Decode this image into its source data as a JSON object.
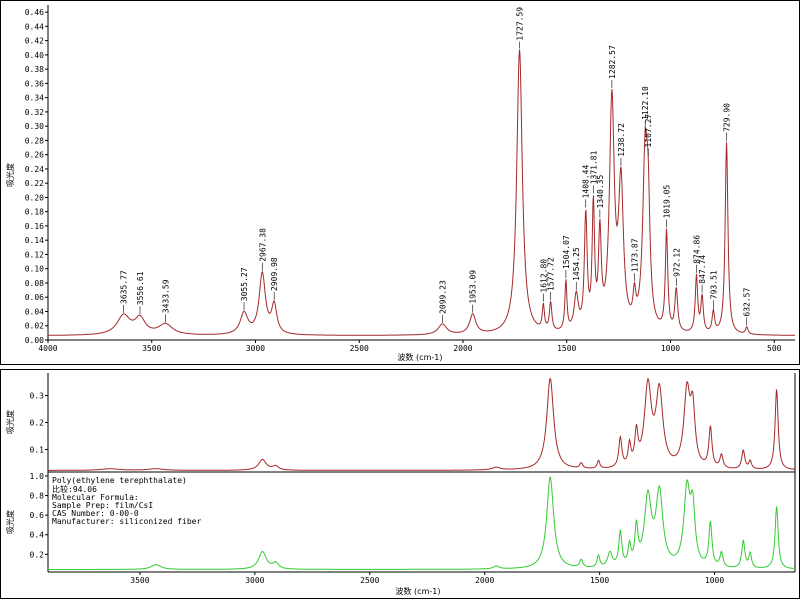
{
  "chart_data": [
    {
      "type": "line",
      "panel": "top",
      "xlim": [
        4000,
        400
      ],
      "ylim": [
        0,
        0.47
      ],
      "x_ticks": [
        "4000",
        "3500",
        "3000",
        "2500",
        "2000",
        "1500",
        "1000",
        "500"
      ],
      "y_ticks": [
        "0.00",
        "0.02",
        "0.04",
        "0.06",
        "0.08",
        "0.10",
        "0.12",
        "0.14",
        "0.16",
        "0.18",
        "0.20",
        "0.22",
        "0.24",
        "0.26",
        "0.28",
        "0.30",
        "0.32",
        "0.34",
        "0.36",
        "0.38",
        "0.40",
        "0.42",
        "0.44",
        "0.46"
      ],
      "xlabel": "波数 (cm-1)",
      "ylabel": "吸光度",
      "series_color": "#a52a2a",
      "baseline": 0.006,
      "peaks": [
        {
          "x": 3635.77,
          "y": 0.027,
          "w": 38,
          "label": "3635.77"
        },
        {
          "x": 3556.61,
          "y": 0.022,
          "w": 30,
          "label": "3556.61"
        },
        {
          "x": 3433.59,
          "y": 0.015,
          "w": 40,
          "label": "3433.59"
        },
        {
          "x": 3055.27,
          "y": 0.03,
          "w": 22,
          "label": "3055.27"
        },
        {
          "x": 2967.38,
          "y": 0.085,
          "w": 18,
          "label": "2967.38"
        },
        {
          "x": 2909.98,
          "y": 0.04,
          "w": 15,
          "label": "2909.98"
        },
        {
          "x": 2099.23,
          "y": 0.015,
          "w": 25,
          "label": "2099.23"
        },
        {
          "x": 1953.09,
          "y": 0.028,
          "w": 18,
          "label": "1953.09"
        },
        {
          "x": 1727.59,
          "y": 0.4,
          "w": 16,
          "label": "1727.59"
        },
        {
          "x": 1612.8,
          "y": 0.035,
          "w": 6,
          "label": "1612.80"
        },
        {
          "x": 1577.72,
          "y": 0.04,
          "w": 7,
          "label": "1577.72"
        },
        {
          "x": 1504.07,
          "y": 0.07,
          "w": 6,
          "label": "1504.07"
        },
        {
          "x": 1454.25,
          "y": 0.05,
          "w": 12,
          "label": "1454.25"
        },
        {
          "x": 1408.44,
          "y": 0.16,
          "w": 8,
          "label": "1408.44"
        },
        {
          "x": 1371.81,
          "y": 0.17,
          "w": 7,
          "label": "1371.81"
        },
        {
          "x": 1340.35,
          "y": 0.13,
          "w": 8,
          "label": "1340.35"
        },
        {
          "x": 1282.57,
          "y": 0.32,
          "w": 14,
          "label": "1282.57"
        },
        {
          "x": 1238.72,
          "y": 0.2,
          "w": 14,
          "label": "1238.72"
        },
        {
          "x": 1173.87,
          "y": 0.04,
          "w": 8,
          "label": "1173.87"
        },
        {
          "x": 1122.1,
          "y": 0.24,
          "w": 14,
          "label": "1122.10"
        },
        {
          "x": 1107.27,
          "y": 0.13,
          "w": 10,
          "label": "1107.27"
        },
        {
          "x": 1019.05,
          "y": 0.14,
          "w": 7,
          "label": "1019.05"
        },
        {
          "x": 972.12,
          "y": 0.06,
          "w": 8,
          "label": "972.12"
        },
        {
          "x": 874.86,
          "y": 0.08,
          "w": 7,
          "label": "874.86"
        },
        {
          "x": 847.74,
          "y": 0.05,
          "w": 7,
          "label": "847.74"
        },
        {
          "x": 793.51,
          "y": 0.03,
          "w": 7,
          "label": "793.51"
        },
        {
          "x": 729.9,
          "y": 0.27,
          "w": 8,
          "label": "729.90"
        },
        {
          "x": 632.57,
          "y": 0.01,
          "w": 7,
          "label": "632.57"
        }
      ]
    },
    {
      "type": "line",
      "panel": "bottom",
      "xlim": [
        3900,
        650
      ],
      "x_ticks": [
        "3500",
        "3000",
        "2500",
        "2000",
        "1500",
        "1000"
      ],
      "xlabel": "波数 (cm-1)",
      "ylabel": "吸光度",
      "series": [
        {
          "color": "#a52a2a",
          "ylim": [
            0.02,
            0.38
          ],
          "y_ticks": [
            "0.1",
            "0.2",
            "0.3"
          ],
          "baseline": 0.022,
          "peaks": [
            {
              "x": 3630,
              "y": 0.006,
              "w": 50
            },
            {
              "x": 3430,
              "y": 0.006,
              "w": 40
            },
            {
              "x": 2967,
              "y": 0.04,
              "w": 20
            },
            {
              "x": 2910,
              "y": 0.015,
              "w": 15
            },
            {
              "x": 1950,
              "y": 0.01,
              "w": 20
            },
            {
              "x": 1715,
              "y": 0.34,
              "w": 18
            },
            {
              "x": 1580,
              "y": 0.02,
              "w": 8
            },
            {
              "x": 1505,
              "y": 0.03,
              "w": 7
            },
            {
              "x": 1410,
              "y": 0.11,
              "w": 8
            },
            {
              "x": 1370,
              "y": 0.08,
              "w": 7
            },
            {
              "x": 1340,
              "y": 0.12,
              "w": 8
            },
            {
              "x": 1290,
              "y": 0.3,
              "w": 18
            },
            {
              "x": 1240,
              "y": 0.28,
              "w": 18
            },
            {
              "x": 1120,
              "y": 0.28,
              "w": 16
            },
            {
              "x": 1095,
              "y": 0.2,
              "w": 12
            },
            {
              "x": 1018,
              "y": 0.15,
              "w": 8
            },
            {
              "x": 970,
              "y": 0.05,
              "w": 8
            },
            {
              "x": 875,
              "y": 0.07,
              "w": 8
            },
            {
              "x": 845,
              "y": 0.03,
              "w": 7
            },
            {
              "x": 730,
              "y": 0.3,
              "w": 8
            }
          ]
        },
        {
          "color": "#33cc33",
          "ylim": [
            0.03,
            1.02
          ],
          "y_ticks": [
            "0.2",
            "0.4",
            "0.6",
            "0.8",
            "1.0"
          ],
          "baseline": 0.045,
          "peaks": [
            {
              "x": 3430,
              "y": 0.05,
              "w": 25
            },
            {
              "x": 2967,
              "y": 0.18,
              "w": 20
            },
            {
              "x": 2910,
              "y": 0.06,
              "w": 15
            },
            {
              "x": 1950,
              "y": 0.03,
              "w": 15
            },
            {
              "x": 1715,
              "y": 0.94,
              "w": 18
            },
            {
              "x": 1580,
              "y": 0.08,
              "w": 8
            },
            {
              "x": 1505,
              "y": 0.12,
              "w": 7
            },
            {
              "x": 1455,
              "y": 0.15,
              "w": 12
            },
            {
              "x": 1410,
              "y": 0.35,
              "w": 8
            },
            {
              "x": 1370,
              "y": 0.2,
              "w": 7
            },
            {
              "x": 1340,
              "y": 0.38,
              "w": 8
            },
            {
              "x": 1290,
              "y": 0.7,
              "w": 18
            },
            {
              "x": 1240,
              "y": 0.75,
              "w": 18
            },
            {
              "x": 1120,
              "y": 0.78,
              "w": 16
            },
            {
              "x": 1095,
              "y": 0.55,
              "w": 12
            },
            {
              "x": 1018,
              "y": 0.45,
              "w": 8
            },
            {
              "x": 970,
              "y": 0.15,
              "w": 8
            },
            {
              "x": 875,
              "y": 0.28,
              "w": 8
            },
            {
              "x": 845,
              "y": 0.15,
              "w": 7
            },
            {
              "x": 730,
              "y": 0.64,
              "w": 8
            }
          ]
        }
      ],
      "info_lines": [
        "Poly(ethylene terephthalate)",
        "比较:94.06",
        "Molecular Formula:",
        "Sample Prep:  film/CsI",
        "CAS Number:      0-00-0",
        "Manufacturer:  siliconized fiber"
      ]
    }
  ]
}
